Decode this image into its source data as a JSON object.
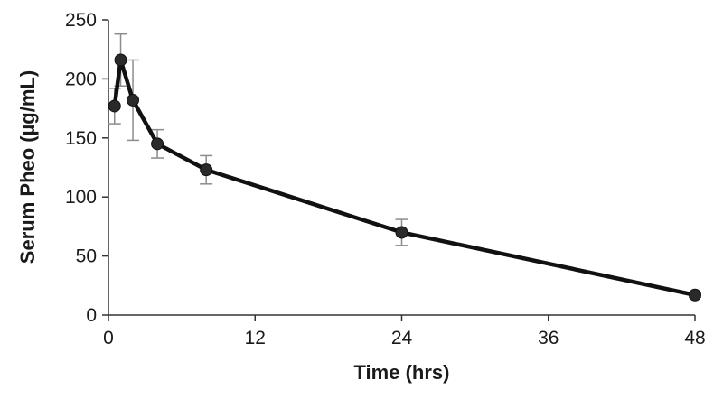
{
  "chart_data": {
    "type": "line",
    "xlabel": "Time (hrs)",
    "ylabel": "Serum Pheo (µg/mL)",
    "xlim": [
      0,
      48
    ],
    "ylim": [
      0,
      250
    ],
    "xticks": [
      0,
      12,
      24,
      36,
      48
    ],
    "yticks": [
      0,
      50,
      100,
      150,
      200,
      250
    ],
    "grid": false,
    "legend": "none",
    "line_color": "#111111",
    "marker_color": "#2a2a2a",
    "error_bar_color": "#8c8c8c",
    "series": [
      {
        "x": [
          0.5,
          1,
          2,
          4,
          8,
          24,
          48
        ],
        "y": [
          177,
          216,
          182,
          145,
          123,
          70,
          17
        ],
        "error": [
          15,
          22,
          34,
          12,
          12,
          11,
          2
        ]
      }
    ]
  }
}
